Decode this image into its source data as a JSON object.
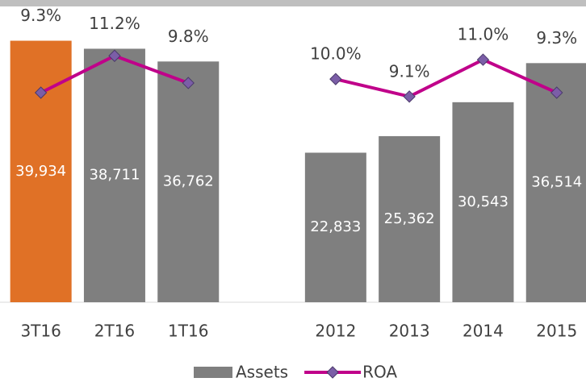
{
  "chart_data": {
    "type": "bar-line",
    "categories": [
      "3T16",
      "2T16",
      "1T16",
      null,
      "2012",
      "2013",
      "2014",
      "2015"
    ],
    "series": [
      {
        "name": "Assets",
        "type": "bar",
        "color": "#7f7f7f",
        "colors": [
          "#e07126",
          "#7f7f7f",
          "#7f7f7f",
          null,
          "#7f7f7f",
          "#7f7f7f",
          "#7f7f7f",
          "#7f7f7f"
        ],
        "values": [
          39934,
          38711,
          36762,
          null,
          22833,
          25362,
          30543,
          36514
        ],
        "value_labels": [
          "39,934",
          "38,711",
          "36,762",
          null,
          "22,833",
          "25,362",
          "30,543",
          "36,514"
        ]
      },
      {
        "name": "ROA",
        "type": "line",
        "axis": "y2",
        "color": "#c0008a",
        "marker_color": "#7b5ea7",
        "values": [
          9.3,
          11.2,
          9.8,
          null,
          10.0,
          9.1,
          11.0,
          9.3
        ],
        "value_labels": [
          "9.3%",
          "11.2%",
          "9.8%",
          null,
          "10.0%",
          "9.1%",
          "11.0%",
          "9.3%"
        ]
      }
    ],
    "ylim": [
      0,
      40000
    ],
    "y2lim": [
      -1.5,
      12
    ]
  }
}
